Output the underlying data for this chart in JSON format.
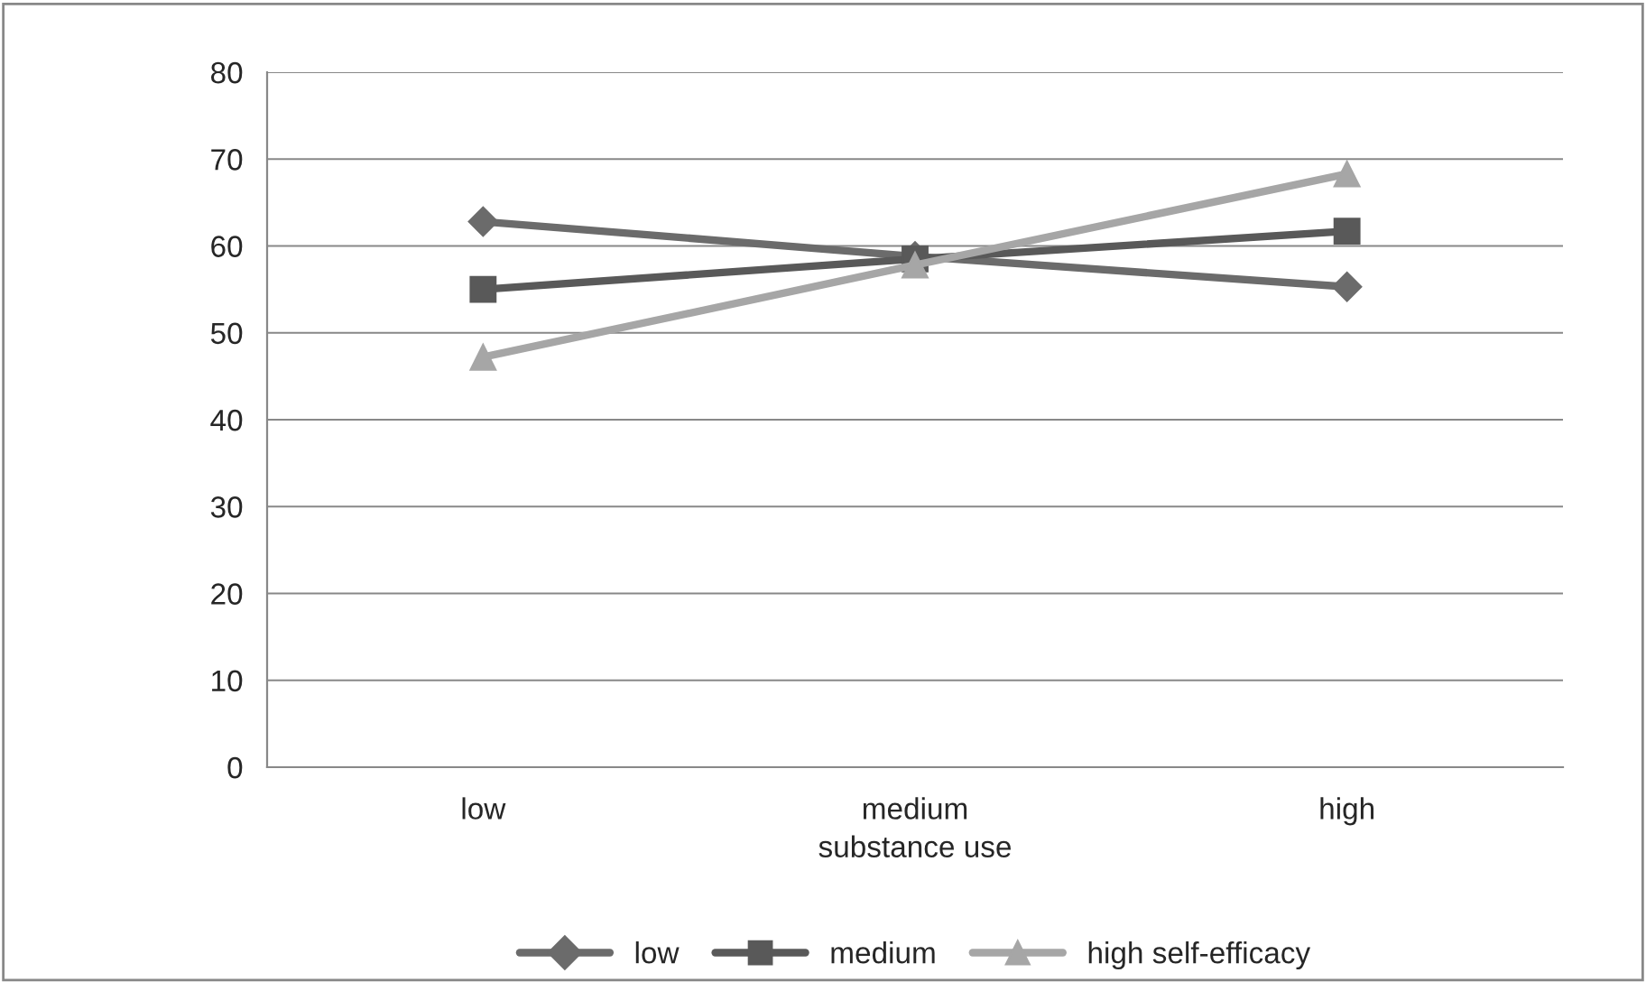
{
  "chart_data": {
    "type": "line",
    "xlabel": "substance use",
    "categories": [
      "low",
      "medium",
      "high"
    ],
    "series": [
      {
        "name": "low",
        "color": "#6b6b6b",
        "values": [
          62.8,
          58.8,
          55.3
        ],
        "marker": "diamond"
      },
      {
        "name": "medium",
        "color": "#595959",
        "values": [
          55,
          58.5,
          61.7
        ],
        "marker": "square"
      },
      {
        "name": "high self-efficacy",
        "color": "#a6a6a6",
        "values": [
          47.2,
          57.8,
          68.3
        ],
        "marker": "triangle"
      }
    ],
    "ylim": [
      0,
      80
    ],
    "yticks": [
      0,
      10,
      20,
      30,
      40,
      50,
      60,
      70,
      80
    ],
    "grid": "y",
    "legend": "bottom"
  }
}
